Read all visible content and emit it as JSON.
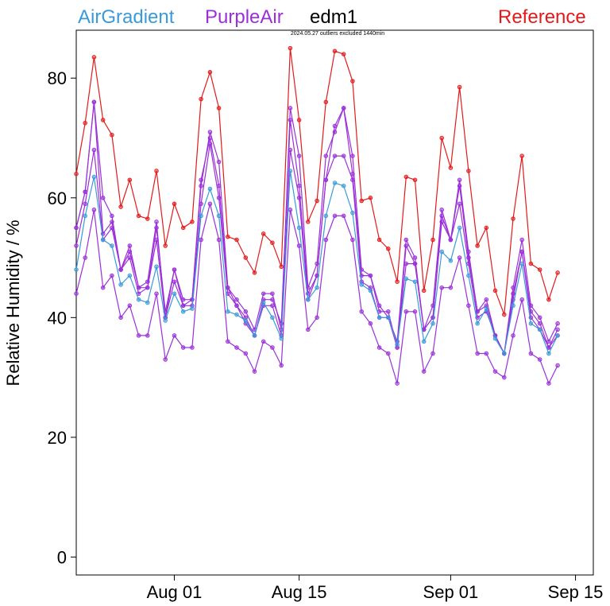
{
  "chart_data": {
    "type": "line",
    "subtitle": "2024.05.27 outliers excluded 1440min",
    "ylabel": "Relative Humidity / %",
    "xlabel": "",
    "ylim": [
      -3,
      88
    ],
    "xlim": [
      "2024-07-21",
      "2024-09-17"
    ],
    "yticks": [
      0,
      20,
      40,
      60,
      80
    ],
    "xticks": [
      {
        "date": "2024-08-01",
        "label": "Aug 01"
      },
      {
        "date": "2024-08-15",
        "label": "Aug 15"
      },
      {
        "date": "2024-09-01",
        "label": "Sep 01"
      },
      {
        "date": "2024-09-15",
        "label": "Sep 15"
      }
    ],
    "x_start": "2024-07-21",
    "x_step_days": 1,
    "legend": [
      {
        "name": "AirGradient",
        "color": "#3a9ad9"
      },
      {
        "name": "PurpleAir",
        "color": "#9b30d9"
      },
      {
        "name": "edm1",
        "color": "#000000"
      },
      {
        "name": "Reference",
        "color": "#e31a1c"
      }
    ],
    "series": [
      {
        "name": "Reference",
        "color": "#e31a1c",
        "values": [
          64,
          72.5,
          83.5,
          73,
          70.5,
          58.5,
          63,
          57,
          56.5,
          64.5,
          52,
          59,
          55,
          56,
          76.5,
          81,
          75,
          53.5,
          53,
          50,
          47.5,
          54,
          52.5,
          48.5,
          85,
          73,
          56,
          59.5,
          76,
          84.5,
          84,
          79.5,
          59.5,
          60,
          53,
          51.5,
          46,
          63.5,
          63,
          44.5,
          53,
          70,
          65,
          78.5,
          64.5,
          52,
          55,
          44.5,
          40.5,
          56.5,
          67,
          49,
          48,
          43,
          47.5
        ]
      },
      {
        "name": "PurpleAir",
        "color": "#9b30d9",
        "values": [
          55,
          61,
          76,
          60,
          57,
          48,
          52,
          45,
          46,
          56,
          40,
          48,
          42,
          43,
          62,
          71,
          66,
          45,
          43,
          41,
          38,
          44,
          44,
          38,
          75,
          67,
          45,
          49,
          67,
          71,
          75,
          67,
          48,
          47,
          42,
          40,
          36,
          53,
          50,
          38,
          42,
          58,
          53,
          63,
          51,
          41,
          43,
          37,
          34,
          45,
          53,
          42,
          40,
          36,
          39
        ]
      },
      {
        "name": "PurpleAir",
        "color": "#9b30d9",
        "values": [
          55,
          61,
          76,
          54,
          56,
          48,
          51,
          45,
          45,
          55,
          41,
          48,
          43,
          43,
          63,
          70,
          62,
          45,
          42,
          39,
          37,
          43,
          43,
          39,
          73,
          62,
          44,
          47,
          63,
          72,
          75,
          64,
          47,
          47,
          41,
          41,
          35,
          52,
          49,
          38,
          40,
          57,
          53,
          62,
          50,
          41,
          42,
          37,
          34,
          44,
          51,
          41,
          39,
          35,
          38
        ]
      },
      {
        "name": "PurpleAir",
        "color": "#9b30d9",
        "values": [
          52,
          59,
          68,
          53,
          55,
          48,
          50,
          44,
          45,
          53,
          40,
          46,
          42,
          42,
          59,
          69,
          60,
          44,
          42,
          40,
          37,
          42,
          42,
          37,
          68,
          60,
          43,
          47,
          63,
          67,
          67,
          63,
          46,
          45,
          40,
          40,
          35,
          49,
          49,
          38,
          40,
          56,
          53,
          59,
          49,
          40,
          41,
          37,
          34,
          43,
          51,
          40,
          38,
          35,
          37
        ]
      },
      {
        "name": "PurpleAir",
        "color": "#9b30d9",
        "values": [
          44,
          50,
          58,
          45,
          47,
          40,
          42,
          37,
          37,
          44,
          33,
          37,
          35,
          35,
          53,
          59,
          53,
          36,
          35,
          34,
          31,
          36,
          35,
          32,
          58,
          52,
          38,
          40,
          53,
          57,
          57,
          53,
          41,
          39,
          35,
          34,
          29,
          41,
          41,
          31,
          34,
          45,
          45,
          50,
          42,
          34,
          34,
          31,
          30,
          37,
          43,
          34,
          33,
          29,
          32
        ]
      },
      {
        "name": "AirGradient",
        "color": "#3a9ad9",
        "values": [
          48,
          57,
          63.5,
          53,
          52,
          45.5,
          47,
          43,
          42.5,
          48.5,
          39.5,
          44,
          41,
          41.5,
          57,
          61.5,
          57,
          41,
          40.5,
          39.5,
          37,
          42.5,
          40,
          36.5,
          64.5,
          55,
          43,
          45,
          57,
          62.5,
          62,
          57.5,
          45.5,
          44.5,
          40,
          40,
          35.5,
          46.5,
          46,
          36,
          39,
          51,
          49.5,
          55,
          47,
          39,
          41.5,
          36.5,
          34,
          42,
          49,
          39,
          38,
          34,
          37
        ]
      }
    ]
  }
}
